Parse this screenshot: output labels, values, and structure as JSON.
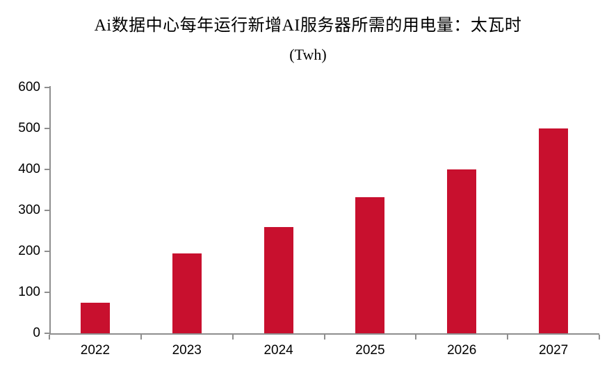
{
  "chart_data": {
    "type": "bar",
    "title": "Ai数据中心每年运行新增AI服务器所需的用电量：太瓦时",
    "unit_label": "(Twh)",
    "categories": [
      "2022",
      "2023",
      "2024",
      "2025",
      "2026",
      "2027"
    ],
    "values": [
      75,
      195,
      260,
      333,
      400,
      500
    ],
    "xlabel": "",
    "ylabel": "",
    "ylim": [
      0,
      600
    ],
    "yticks": [
      0,
      100,
      200,
      300,
      400,
      500,
      600
    ],
    "grid": false,
    "legend": "none",
    "bar_color": "#C8102E",
    "axis_color": "#8E8E8E",
    "text_color": "#000000"
  }
}
